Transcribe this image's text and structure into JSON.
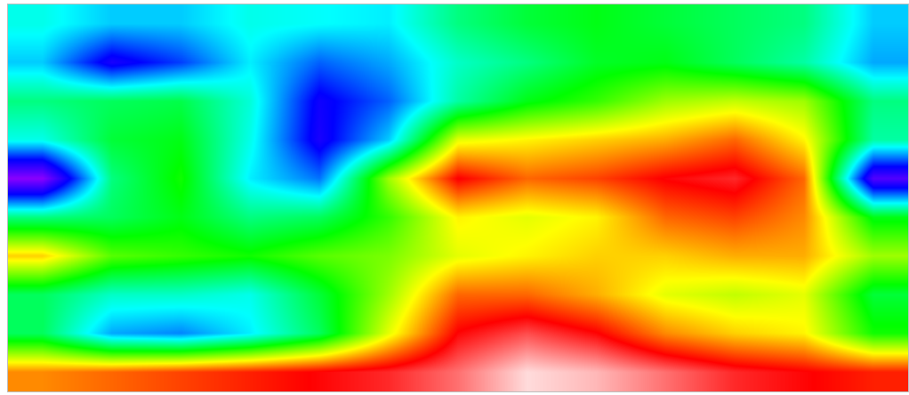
{
  "chart_data": {
    "type": "heatmap",
    "title": "",
    "xlabel": "",
    "ylabel": "",
    "colormap": [
      "#000000",
      "#8800ff",
      "#0000ff",
      "#00ffff",
      "#00ff00",
      "#ffff00",
      "#ff0000",
      "#ffffff"
    ],
    "value_range": [
      0,
      1
    ],
    "grid": false,
    "legend": "none",
    "rows": 10,
    "cols": 13,
    "values": [
      [
        0.44,
        0.4,
        0.4,
        0.44,
        0.43,
        0.42,
        0.5,
        0.54,
        0.56,
        0.54,
        0.52,
        0.5,
        0.4
      ],
      [
        0.4,
        0.26,
        0.32,
        0.42,
        0.34,
        0.38,
        0.46,
        0.5,
        0.55,
        0.56,
        0.52,
        0.48,
        0.38
      ],
      [
        0.5,
        0.52,
        0.53,
        0.45,
        0.27,
        0.34,
        0.48,
        0.56,
        0.6,
        0.66,
        0.68,
        0.66,
        0.5
      ],
      [
        0.44,
        0.54,
        0.56,
        0.44,
        0.26,
        0.4,
        0.7,
        0.72,
        0.74,
        0.76,
        0.8,
        0.72,
        0.48
      ],
      [
        0.14,
        0.5,
        0.58,
        0.42,
        0.35,
        0.66,
        0.86,
        0.8,
        0.82,
        0.86,
        0.88,
        0.8,
        0.2
      ],
      [
        0.5,
        0.52,
        0.56,
        0.5,
        0.52,
        0.6,
        0.72,
        0.7,
        0.72,
        0.8,
        0.82,
        0.78,
        0.56
      ],
      [
        0.74,
        0.62,
        0.6,
        0.58,
        0.62,
        0.64,
        0.7,
        0.72,
        0.74,
        0.74,
        0.76,
        0.76,
        0.66
      ],
      [
        0.52,
        0.46,
        0.46,
        0.44,
        0.54,
        0.66,
        0.8,
        0.8,
        0.76,
        0.7,
        0.68,
        0.7,
        0.54
      ],
      [
        0.52,
        0.38,
        0.36,
        0.42,
        0.52,
        0.7,
        0.86,
        0.9,
        0.86,
        0.78,
        0.74,
        0.72,
        0.58
      ],
      [
        0.78,
        0.8,
        0.82,
        0.84,
        0.86,
        0.88,
        0.92,
        0.98,
        0.96,
        0.92,
        0.88,
        0.86,
        0.84
      ]
    ]
  }
}
